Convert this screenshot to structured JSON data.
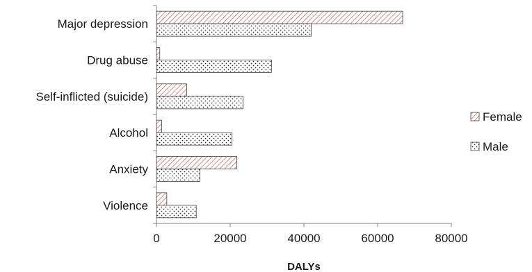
{
  "chart_data": {
    "type": "bar",
    "orientation": "horizontal",
    "categories": [
      "Major depression",
      "Drug abuse",
      "Self-inflicted (suicide)",
      "Alcohol",
      "Anxiety",
      "Violence"
    ],
    "series": [
      {
        "name": "Female",
        "values": [
          66800,
          900,
          8200,
          1400,
          21800,
          2800
        ],
        "color": "#c0504d",
        "pattern": "diagonal-hatch"
      },
      {
        "name": "Male",
        "values": [
          42000,
          31200,
          23500,
          20500,
          11800,
          10800
        ],
        "color": "#555555",
        "pattern": "dots"
      }
    ],
    "xlabel": "DALYs",
    "ylabel": "",
    "xlim": [
      0,
      80000
    ],
    "xticks": [
      0,
      20000,
      40000,
      60000,
      80000
    ],
    "xtick_labels": [
      "0",
      "20000",
      "40000",
      "60000",
      "80000"
    ],
    "grid": false,
    "legend_position": "right"
  }
}
